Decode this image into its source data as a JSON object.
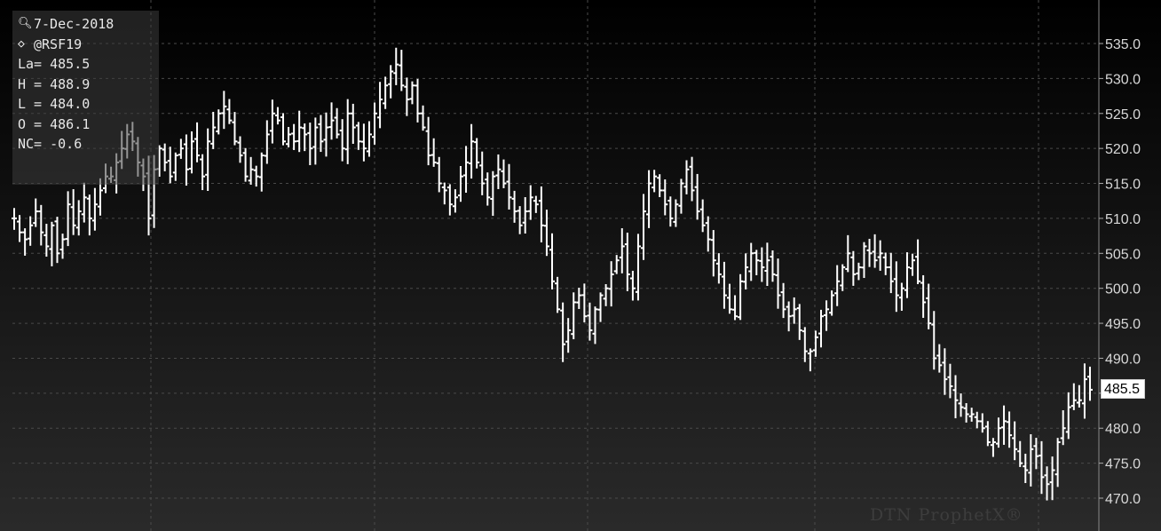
{
  "info": {
    "date": "7-Dec-2018",
    "symbol": "@RSF19",
    "last": "La= 485.5",
    "high": "H = 488.9",
    "low": "L = 484.0",
    "open": "O = 486.1",
    "net_change": "NC= -0.6"
  },
  "icons": {
    "date": "magnifier-icon",
    "symbol": "diamond-icon"
  },
  "last_price_label": "485.5",
  "watermark": "DTN ProphetX®",
  "colors": {
    "background_top": "#000000",
    "background_bottom": "#2a2a2a",
    "bars": "#ffffff",
    "grid": "#4a4a4a",
    "axis_text": "#d8d8d8"
  },
  "chart_data": {
    "type": "ohlc",
    "ylim": [
      468,
      538
    ],
    "ytick_labels": [
      "470.0",
      "475.0",
      "480.0",
      "485.0",
      "490.0",
      "495.0",
      "500.0",
      "505.0",
      "510.0",
      "515.0",
      "520.0",
      "525.0",
      "530.0",
      "535.0"
    ],
    "grid": true,
    "close_series": [
      510,
      508,
      507,
      509,
      511,
      508,
      506,
      509,
      505,
      507,
      512,
      509,
      511,
      513,
      510,
      512,
      514,
      516,
      516,
      518,
      520,
      522,
      521,
      518,
      516,
      510,
      517,
      520,
      518,
      516,
      519,
      520,
      517,
      521,
      519,
      516,
      521,
      523,
      525,
      526,
      524,
      521,
      519,
      516,
      517,
      516,
      519,
      522,
      525,
      524,
      521,
      522,
      521,
      523,
      522,
      520,
      523,
      521,
      523,
      524,
      522,
      520,
      525,
      523,
      521,
      520,
      522,
      525,
      527,
      529,
      531,
      532,
      529,
      527,
      529,
      525,
      523,
      519,
      518,
      515,
      514,
      512,
      513,
      516,
      518,
      521,
      518,
      515,
      513,
      516,
      517,
      515,
      513,
      511,
      509,
      511,
      513,
      512,
      509,
      506,
      501,
      497,
      492,
      494,
      498,
      499,
      496,
      494,
      497,
      499,
      500,
      502,
      504,
      506,
      502,
      500,
      506,
      511,
      515,
      516,
      514,
      512,
      510,
      512,
      515,
      517,
      514,
      511,
      509,
      507,
      504,
      502,
      499,
      497,
      496,
      501,
      503,
      505,
      504,
      503,
      504,
      502,
      499,
      497,
      496,
      497,
      494,
      491,
      491,
      493,
      496,
      497,
      499,
      501,
      503,
      505,
      502,
      503,
      506,
      505,
      504,
      505,
      503,
      501,
      499,
      500,
      503,
      504,
      501,
      498,
      495,
      490,
      489,
      487,
      486,
      484,
      483,
      482,
      482,
      481,
      480,
      478,
      478,
      480,
      481,
      479,
      477,
      475,
      474,
      477,
      476,
      473,
      472,
      474,
      478,
      480,
      483,
      484,
      484,
      487,
      485.5
    ]
  }
}
